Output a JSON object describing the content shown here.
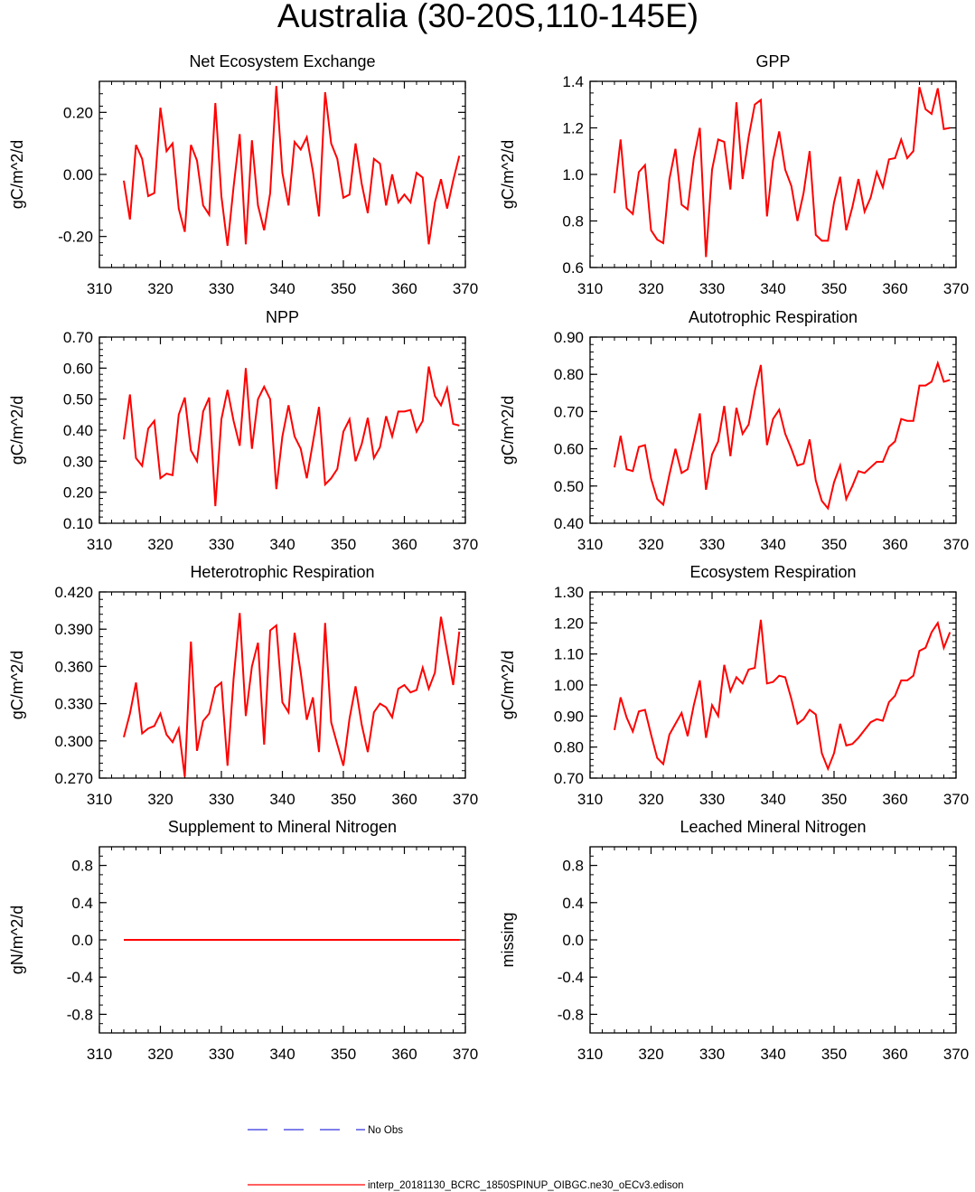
{
  "page_title": "Australia (30-20S,110-145E)",
  "legend": {
    "obs_label": "No Obs",
    "model_label": "interp_20181130_BCRC_1850SPINUP_OIBGC.ne30_oECv3.edison",
    "obs_color": "#3333dd",
    "model_color": "#ff0000"
  },
  "chart_data": [
    {
      "type": "line",
      "title": "Net Ecosystem Exchange",
      "ylabel": "gC/m^2/d",
      "xlim": [
        310,
        370
      ],
      "ylim": [
        -0.3,
        0.3
      ],
      "xticks": [
        "310",
        "320",
        "330",
        "340",
        "350",
        "360",
        "370"
      ],
      "yticks": [
        -0.2,
        0.0,
        0.2
      ],
      "ytick_labels": [
        "-0.20",
        "0.00",
        "0.20"
      ],
      "minor_ystep": 0.04,
      "x_start": 314,
      "series": [
        {
          "name": "model",
          "color": "#ff0000",
          "values": [
            -0.02,
            -0.145,
            0.095,
            0.05,
            -0.07,
            -0.06,
            0.215,
            0.075,
            0.1,
            -0.11,
            -0.185,
            0.095,
            0.045,
            -0.1,
            -0.13,
            0.23,
            -0.07,
            -0.23,
            -0.04,
            0.13,
            -0.225,
            0.11,
            -0.1,
            -0.18,
            -0.06,
            0.285,
            0.005,
            -0.1,
            0.105,
            0.08,
            0.12,
            0.01,
            -0.135,
            0.265,
            0.1,
            0.05,
            -0.075,
            -0.065,
            0.1,
            -0.03,
            -0.125,
            0.05,
            0.035,
            -0.1,
            0.0,
            -0.09,
            -0.065,
            -0.09,
            0.005,
            -0.01,
            -0.225,
            -0.09,
            -0.015,
            -0.11,
            -0.02,
            0.06
          ]
        }
      ]
    },
    {
      "type": "line",
      "title": "GPP",
      "ylabel": "gC/m^2/d",
      "xlim": [
        310,
        370
      ],
      "ylim": [
        0.6,
        1.4
      ],
      "xticks": [
        "310",
        "320",
        "330",
        "340",
        "350",
        "360",
        "370"
      ],
      "yticks": [
        0.6,
        0.8,
        1.0,
        1.2,
        1.4
      ],
      "ytick_labels": [
        "0.6",
        "0.8",
        "1.0",
        "1.2",
        "1.4"
      ],
      "minor_ystep": 0.05,
      "x_start": 314,
      "series": [
        {
          "name": "model",
          "color": "#ff0000",
          "values": [
            0.92,
            1.15,
            0.855,
            0.83,
            1.01,
            1.04,
            0.76,
            0.72,
            0.705,
            0.98,
            1.11,
            0.87,
            0.85,
            1.07,
            1.2,
            0.645,
            1.02,
            1.15,
            1.14,
            0.935,
            1.31,
            0.98,
            1.16,
            1.3,
            1.32,
            0.82,
            1.06,
            1.185,
            1.02,
            0.95,
            0.8,
            0.92,
            1.1,
            0.74,
            0.715,
            0.715,
            0.88,
            0.99,
            0.76,
            0.86,
            0.98,
            0.84,
            0.9,
            1.01,
            0.945,
            1.065,
            1.07,
            1.15,
            1.07,
            1.1,
            1.375,
            1.28,
            1.26,
            1.37,
            1.195,
            1.2
          ]
        }
      ]
    },
    {
      "type": "line",
      "title": "NPP",
      "ylabel": "gC/m^2/d",
      "xlim": [
        310,
        370
      ],
      "ylim": [
        0.1,
        0.7
      ],
      "xticks": [
        "310",
        "320",
        "330",
        "340",
        "350",
        "360",
        "370"
      ],
      "yticks": [
        0.1,
        0.2,
        0.3,
        0.4,
        0.5,
        0.6,
        0.7
      ],
      "ytick_labels": [
        "0.10",
        "0.20",
        "0.30",
        "0.40",
        "0.50",
        "0.60",
        "0.70"
      ],
      "minor_ystep": 0.02,
      "x_start": 314,
      "series": [
        {
          "name": "model",
          "color": "#ff0000",
          "values": [
            0.37,
            0.515,
            0.31,
            0.285,
            0.405,
            0.43,
            0.245,
            0.26,
            0.255,
            0.45,
            0.505,
            0.335,
            0.3,
            0.46,
            0.505,
            0.155,
            0.435,
            0.53,
            0.43,
            0.35,
            0.6,
            0.34,
            0.5,
            0.54,
            0.5,
            0.21,
            0.38,
            0.48,
            0.38,
            0.34,
            0.245,
            0.36,
            0.475,
            0.225,
            0.245,
            0.275,
            0.395,
            0.435,
            0.3,
            0.355,
            0.44,
            0.31,
            0.345,
            0.445,
            0.38,
            0.46,
            0.46,
            0.465,
            0.395,
            0.43,
            0.605,
            0.51,
            0.48,
            0.535,
            0.42,
            0.415
          ]
        }
      ]
    },
    {
      "type": "line",
      "title": "Autotrophic Respiration",
      "ylabel": "gC/m^2/d",
      "xlim": [
        310,
        370
      ],
      "ylim": [
        0.4,
        0.9
      ],
      "xticks": [
        "310",
        "320",
        "330",
        "340",
        "350",
        "360",
        "370"
      ],
      "yticks": [
        0.4,
        0.5,
        0.6,
        0.7,
        0.8,
        0.9
      ],
      "ytick_labels": [
        "0.40",
        "0.50",
        "0.60",
        "0.70",
        "0.80",
        "0.90"
      ],
      "minor_ystep": 0.02,
      "x_start": 314,
      "series": [
        {
          "name": "model",
          "color": "#ff0000",
          "values": [
            0.55,
            0.635,
            0.545,
            0.54,
            0.605,
            0.61,
            0.52,
            0.465,
            0.45,
            0.53,
            0.6,
            0.535,
            0.545,
            0.62,
            0.695,
            0.49,
            0.585,
            0.62,
            0.715,
            0.58,
            0.71,
            0.64,
            0.665,
            0.755,
            0.825,
            0.61,
            0.68,
            0.705,
            0.64,
            0.6,
            0.555,
            0.56,
            0.625,
            0.515,
            0.46,
            0.44,
            0.51,
            0.555,
            0.465,
            0.5,
            0.54,
            0.535,
            0.55,
            0.565,
            0.565,
            0.605,
            0.62,
            0.68,
            0.675,
            0.675,
            0.77,
            0.77,
            0.78,
            0.83,
            0.78,
            0.785
          ]
        }
      ]
    },
    {
      "type": "line",
      "title": "Heterotrophic Respiration",
      "ylabel": "gC/m^2/d",
      "xlim": [
        310,
        370
      ],
      "ylim": [
        0.27,
        0.42
      ],
      "xticks": [
        "310",
        "320",
        "330",
        "340",
        "350",
        "360",
        "370"
      ],
      "yticks": [
        0.27,
        0.3,
        0.33,
        0.36,
        0.39,
        0.42
      ],
      "ytick_labels": [
        "0.270",
        "0.300",
        "0.330",
        "0.360",
        "0.390",
        "0.420"
      ],
      "minor_ystep": 0.006,
      "x_start": 314,
      "series": [
        {
          "name": "model",
          "color": "#ff0000",
          "values": [
            0.303,
            0.322,
            0.347,
            0.306,
            0.31,
            0.312,
            0.322,
            0.305,
            0.299,
            0.31,
            0.271,
            0.38,
            0.292,
            0.316,
            0.322,
            0.343,
            0.347,
            0.28,
            0.35,
            0.403,
            0.32,
            0.36,
            0.379,
            0.297,
            0.389,
            0.393,
            0.331,
            0.323,
            0.387,
            0.355,
            0.317,
            0.335,
            0.291,
            0.395,
            0.315,
            0.297,
            0.28,
            0.318,
            0.344,
            0.313,
            0.291,
            0.323,
            0.33,
            0.327,
            0.319,
            0.342,
            0.345,
            0.339,
            0.341,
            0.359,
            0.342,
            0.355,
            0.4,
            0.372,
            0.345,
            0.388
          ]
        }
      ]
    },
    {
      "type": "line",
      "title": "Ecosystem Respiration",
      "ylabel": "gC/m^2/d",
      "xlim": [
        310,
        370
      ],
      "ylim": [
        0.7,
        1.3
      ],
      "xticks": [
        "310",
        "320",
        "330",
        "340",
        "350",
        "360",
        "370"
      ],
      "yticks": [
        0.7,
        0.8,
        0.9,
        1.0,
        1.1,
        1.2,
        1.3
      ],
      "ytick_labels": [
        "0.70",
        "0.80",
        "0.90",
        "1.00",
        "1.10",
        "1.20",
        "1.30"
      ],
      "minor_ystep": 0.02,
      "x_start": 314,
      "series": [
        {
          "name": "model",
          "color": "#ff0000",
          "values": [
            0.855,
            0.96,
            0.895,
            0.85,
            0.915,
            0.92,
            0.84,
            0.765,
            0.745,
            0.84,
            0.875,
            0.91,
            0.835,
            0.935,
            1.015,
            0.83,
            0.935,
            0.9,
            1.065,
            0.98,
            1.025,
            1.005,
            1.05,
            1.055,
            1.21,
            1.005,
            1.01,
            1.03,
            1.025,
            0.955,
            0.875,
            0.89,
            0.92,
            0.905,
            0.78,
            0.73,
            0.78,
            0.875,
            0.805,
            0.81,
            0.83,
            0.855,
            0.88,
            0.89,
            0.885,
            0.945,
            0.965,
            1.015,
            1.015,
            1.03,
            1.11,
            1.12,
            1.17,
            1.2,
            1.12,
            1.17
          ]
        }
      ]
    },
    {
      "type": "line",
      "title": "Supplement to Mineral Nitrogen",
      "ylabel": "gN/m^2/d",
      "xlim": [
        310,
        370
      ],
      "ylim": [
        -1.0,
        1.0
      ],
      "xticks": [
        "310",
        "320",
        "330",
        "340",
        "350",
        "360",
        "370"
      ],
      "yticks": [
        -0.8,
        -0.4,
        0.0,
        0.4,
        0.8
      ],
      "ytick_labels": [
        "-0.8",
        "-0.4",
        "0.0",
        "0.4",
        "0.8"
      ],
      "minor_ystep": 0.1,
      "x_start": 314,
      "series": [
        {
          "name": "model",
          "color": "#ff0000",
          "values": [
            0,
            0,
            0,
            0,
            0,
            0,
            0,
            0,
            0,
            0,
            0,
            0,
            0,
            0,
            0,
            0,
            0,
            0,
            0,
            0,
            0,
            0,
            0,
            0,
            0,
            0,
            0,
            0,
            0,
            0,
            0,
            0,
            0,
            0,
            0,
            0,
            0,
            0,
            0,
            0,
            0,
            0,
            0,
            0,
            0,
            0,
            0,
            0,
            0,
            0,
            0,
            0,
            0,
            0,
            0,
            0
          ]
        }
      ]
    },
    {
      "type": "line",
      "title": "Leached Mineral Nitrogen",
      "ylabel": "missing",
      "xlim": [
        310,
        370
      ],
      "ylim": [
        -1.0,
        1.0
      ],
      "xticks": [
        "310",
        "320",
        "330",
        "340",
        "350",
        "360",
        "370"
      ],
      "yticks": [
        -0.8,
        -0.4,
        0.0,
        0.4,
        0.8
      ],
      "ytick_labels": [
        "-0.8",
        "-0.4",
        "0.0",
        "0.4",
        "0.8"
      ],
      "minor_ystep": 0.1,
      "x_start": 314,
      "series": []
    }
  ]
}
